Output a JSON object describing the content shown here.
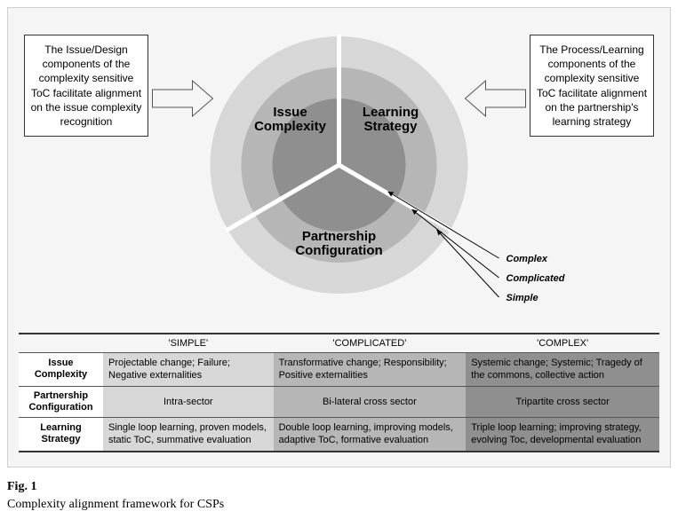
{
  "callout_left": "The Issue/Design components of the complexity sensitive ToC facilitate alignment on the issue complexity recognition",
  "callout_right": "The Process/Learning components of the complexity sensitive ToC facilitate alignment on the partnership's learning strategy",
  "sectors": {
    "top_left": "Issue\nComplexity",
    "top_right": "Learning\nStrategy",
    "bottom": "Partnership\nConfiguration"
  },
  "ring_labels": {
    "inner": "Complex",
    "middle": "Complicated",
    "outer": "Simple"
  },
  "ring_colors": {
    "inner": "#8f8f8f",
    "middle": "#b6b6b6",
    "outer": "#d7d7d7"
  },
  "background_color": "#f5f5f5",
  "table": {
    "head_simple": "'SIMPLE'",
    "head_complicated": "'COMPLICATED'",
    "head_complex": "'COMPLEX'",
    "row_issue": "Issue\nComplexity",
    "row_partnership": "Partnership\nConfiguration",
    "row_learning": "Learning\nStrategy",
    "issue_simple": "Projectable change; Failure; Negative externalities",
    "issue_complicated": "Transformative change; Responsibility; Positive externalities",
    "issue_complex": "Systemic change; Systemic; Tragedy of the commons, collective action",
    "partnership_simple": "Intra-sector",
    "partnership_complicated": "Bi-lateral cross sector",
    "partnership_complex": "Tripartite cross sector",
    "learning_simple": "Single loop learning, proven models, static ToC, summative evaluation",
    "learning_complicated": "Double loop learning, improving models, adaptive ToC, formative evaluation",
    "learning_complex": "Triple loop learning; improving strategy, evolving Toc, developmental evaluation",
    "cell_bg_simple": "#d7d7d7",
    "cell_bg_complicated": "#b6b6b6",
    "cell_bg_complex": "#8f8f8f"
  },
  "figure": {
    "number": "Fig. 1",
    "caption": "Complexity alignment framework for CSPs"
  }
}
